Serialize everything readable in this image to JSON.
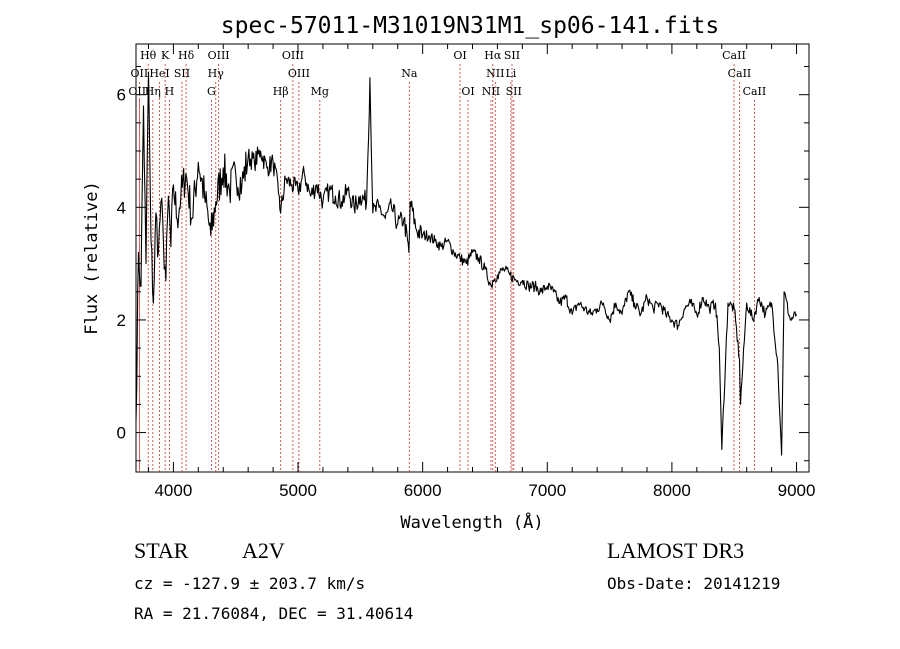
{
  "chart_data": {
    "type": "line",
    "title": "spec-57011-M31019N31M1_sp06-141.fits",
    "xlabel": "Wavelength (Å)",
    "ylabel": "Flux (relative)",
    "xlim": [
      3700,
      9100
    ],
    "ylim": [
      -0.7,
      6.9
    ],
    "xticks": [
      4000,
      5000,
      6000,
      7000,
      8000,
      9000
    ],
    "yticks": [
      0,
      2,
      4,
      6
    ],
    "x_minor_step": 200,
    "y_minor_step": 0.5,
    "series": [
      {
        "name": "flux",
        "x": [
          3700,
          3720,
          3740,
          3760,
          3780,
          3800,
          3820,
          3840,
          3860,
          3880,
          3900,
          3920,
          3940,
          3960,
          3980,
          4000,
          4030,
          4060,
          4100,
          4150,
          4200,
          4250,
          4300,
          4340,
          4400,
          4450,
          4500,
          4550,
          4600,
          4650,
          4700,
          4750,
          4800,
          4850,
          4860,
          4900,
          4950,
          5000,
          5050,
          5100,
          5150,
          5200,
          5250,
          5300,
          5350,
          5400,
          5450,
          5500,
          5550,
          5577,
          5600,
          5650,
          5700,
          5750,
          5800,
          5850,
          5890,
          5900,
          5950,
          6000,
          6050,
          6100,
          6150,
          6200,
          6250,
          6300,
          6350,
          6400,
          6450,
          6500,
          6550,
          6563,
          6600,
          6650,
          6700,
          6750,
          6800,
          6850,
          6900,
          6950,
          7000,
          7050,
          7100,
          7150,
          7200,
          7250,
          7300,
          7350,
          7400,
          7450,
          7500,
          7550,
          7600,
          7650,
          7700,
          7750,
          7800,
          7850,
          7900,
          7950,
          8000,
          8050,
          8100,
          8150,
          8200,
          8250,
          8300,
          8350,
          8380,
          8400,
          8450,
          8500,
          8542,
          8550,
          8600,
          8650,
          8700,
          8750,
          8800,
          8850,
          8880,
          8900,
          8950,
          9000
        ],
        "y": [
          0.2,
          3.2,
          2.6,
          5.8,
          3.0,
          6.4,
          3.4,
          2.3,
          3.9,
          3.2,
          4.1,
          3.4,
          2.7,
          4.2,
          3.3,
          4.4,
          3.8,
          4.2,
          4.6,
          3.8,
          4.8,
          4.2,
          3.5,
          4.1,
          4.7,
          4.3,
          4.6,
          4.4,
          4.9,
          4.8,
          5.0,
          4.7,
          4.8,
          4.2,
          3.9,
          4.5,
          4.4,
          4.3,
          4.6,
          4.2,
          4.4,
          4.1,
          4.3,
          4.2,
          4.1,
          4.3,
          4.0,
          4.2,
          4.1,
          6.3,
          3.9,
          4.0,
          3.8,
          4.0,
          3.7,
          3.8,
          3.2,
          4.1,
          3.6,
          3.5,
          3.5,
          3.4,
          3.3,
          3.4,
          3.2,
          3.1,
          3.0,
          3.2,
          3.1,
          2.9,
          2.6,
          2.7,
          2.8,
          2.9,
          2.8,
          2.7,
          2.7,
          2.6,
          2.6,
          2.5,
          2.6,
          2.5,
          2.3,
          2.4,
          2.1,
          2.3,
          2.2,
          2.1,
          2.2,
          2.3,
          2.0,
          2.3,
          2.1,
          2.5,
          2.3,
          2.1,
          2.4,
          2.2,
          2.3,
          2.1,
          2.0,
          1.9,
          2.2,
          2.3,
          2.1,
          2.4,
          2.2,
          2.3,
          1.5,
          -0.3,
          2.3,
          2.2,
          1.3,
          0.5,
          2.3,
          2.0,
          2.4,
          2.1,
          2.3,
          1.2,
          -0.4,
          2.5,
          2.0,
          2.1
        ]
      }
    ],
    "spectral_lines": [
      {
        "label": "Hθ",
        "x": 3798,
        "row": 0
      },
      {
        "label": "K",
        "x": 3934,
        "row": 0
      },
      {
        "label": "Hδ",
        "x": 4102,
        "row": 0
      },
      {
        "label": "OIII",
        "x": 4363,
        "row": 0
      },
      {
        "label": "OIII",
        "x": 4959,
        "row": 0
      },
      {
        "label": "OI",
        "x": 6300,
        "row": 0
      },
      {
        "label": "Hα",
        "x": 6563,
        "row": 0
      },
      {
        "label": "SII",
        "x": 6717,
        "row": 0
      },
      {
        "label": "CaII",
        "x": 8498,
        "row": 0
      },
      {
        "label": "OII",
        "x": 3727,
        "row": 1
      },
      {
        "label": "HeI",
        "x": 3889,
        "row": 1
      },
      {
        "label": "SII",
        "x": 4069,
        "row": 1
      },
      {
        "label": "Hγ",
        "x": 4340,
        "row": 1
      },
      {
        "label": "OIII",
        "x": 5007,
        "row": 1
      },
      {
        "label": "Na",
        "x": 5893,
        "row": 1
      },
      {
        "label": "NII",
        "x": 6583,
        "row": 1
      },
      {
        "label": "Li",
        "x": 6708,
        "row": 1
      },
      {
        "label": "CaII",
        "x": 8542,
        "row": 1
      },
      {
        "label": "OIII",
        "x": 3727,
        "row": 2
      },
      {
        "label": "Hη",
        "x": 3835,
        "row": 2
      },
      {
        "label": "H",
        "x": 3968,
        "row": 2
      },
      {
        "label": "G",
        "x": 4305,
        "row": 2
      },
      {
        "label": "Hβ",
        "x": 4861,
        "row": 2
      },
      {
        "label": "Mg",
        "x": 5175,
        "row": 2
      },
      {
        "label": "OI",
        "x": 6364,
        "row": 2
      },
      {
        "label": "NII",
        "x": 6548,
        "row": 2
      },
      {
        "label": "SII",
        "x": 6731,
        "row": 2
      },
      {
        "label": "CaII",
        "x": 8662,
        "row": 2
      }
    ]
  },
  "info": {
    "object_class": "STAR",
    "subclass": "A2V",
    "survey": "LAMOST DR3",
    "redshift": "cz = -127.9 ± 203.7 km/s",
    "obs_date": "Obs-Date: 20141219",
    "coords": "RA =  21.76084, DEC =  31.40614"
  },
  "colors": {
    "line_marker": "#c0392b",
    "spectrum": "#000000"
  }
}
